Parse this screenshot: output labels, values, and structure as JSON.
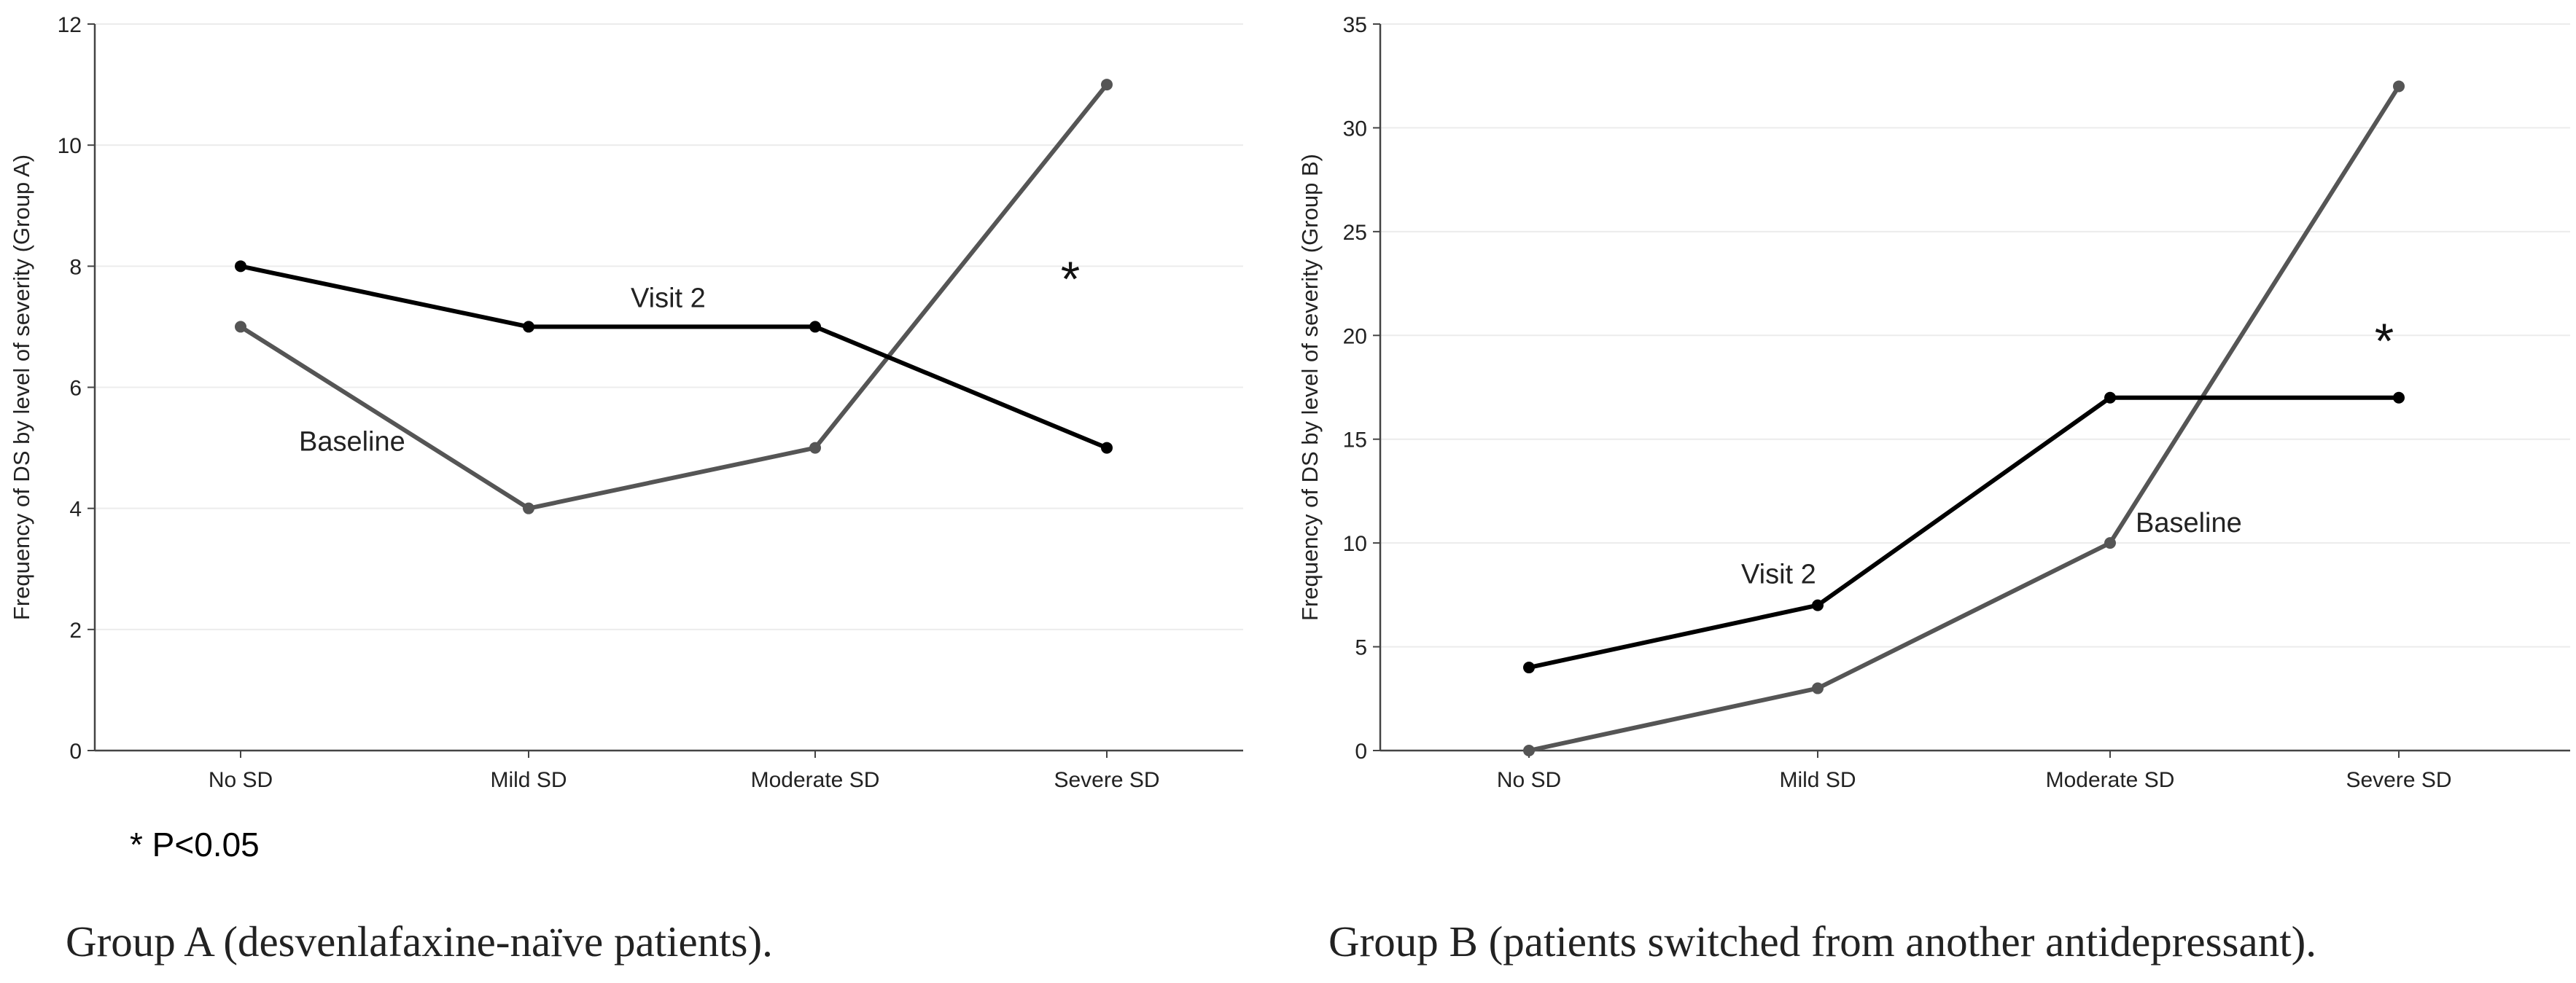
{
  "chart_data": [
    {
      "type": "line",
      "categories": [
        "No SD",
        "Mild SD",
        "Moderate SD",
        "Severe SD"
      ],
      "ylabel": "Frequency of DS by level  of severity (Group A)",
      "ylim": [
        0,
        12
      ],
      "yticks": [
        0,
        2,
        4,
        6,
        8,
        10,
        12
      ],
      "grid": true,
      "series": [
        {
          "name": "Visit 2",
          "values": [
            8,
            7,
            7,
            5
          ],
          "color": "#000000"
        },
        {
          "name": "Baseline",
          "values": [
            7,
            4,
            5,
            11
          ],
          "color": "#555555"
        }
      ],
      "annotation": "*",
      "footnote": "* P<0.05",
      "caption": "Group A (desvenlafaxine-naïve patients)."
    },
    {
      "type": "line",
      "categories": [
        "No SD",
        "Mild SD",
        "Moderate SD",
        "Severe SD"
      ],
      "ylabel": "Frequency of DS by level  of severity (Group B)",
      "ylim": [
        0,
        35
      ],
      "yticks": [
        0,
        5,
        10,
        15,
        20,
        25,
        30,
        35
      ],
      "grid": true,
      "series": [
        {
          "name": "Visit 2",
          "values": [
            4,
            7,
            17,
            17
          ],
          "color": "#000000"
        },
        {
          "name": "Baseline",
          "values": [
            0,
            3,
            10,
            32
          ],
          "color": "#555555"
        }
      ],
      "annotation": "*",
      "caption": "Group B (patients switched from another antidepressant)."
    }
  ]
}
